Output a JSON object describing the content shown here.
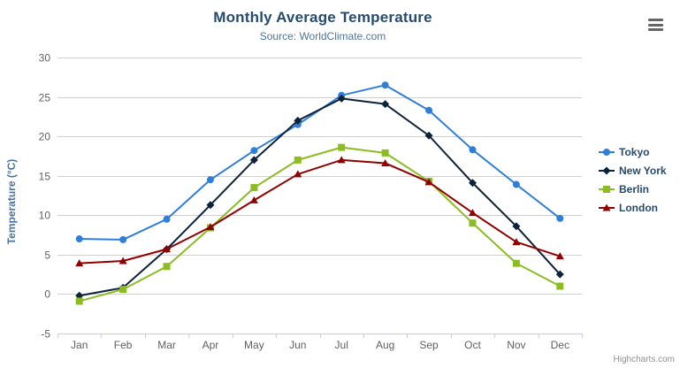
{
  "chart_data": {
    "type": "line",
    "title": "Monthly Average Temperature",
    "subtitle": "Source: WorldClimate.com",
    "xlabel": "",
    "ylabel": "Temperature (°C)",
    "ylim": [
      -5,
      30
    ],
    "ytick_step": 5,
    "grid": true,
    "legend_position": "right",
    "categories": [
      "Jan",
      "Feb",
      "Mar",
      "Apr",
      "May",
      "Jun",
      "Jul",
      "Aug",
      "Sep",
      "Oct",
      "Nov",
      "Dec"
    ],
    "series": [
      {
        "name": "Tokyo",
        "color": "#2f7ed8",
        "marker": "circle",
        "values": [
          7.0,
          6.9,
          9.5,
          14.5,
          18.2,
          21.5,
          25.2,
          26.5,
          23.3,
          18.3,
          13.9,
          9.6
        ]
      },
      {
        "name": "New York",
        "color": "#0d233a",
        "marker": "diamond",
        "values": [
          -0.2,
          0.8,
          5.7,
          11.3,
          17.0,
          22.0,
          24.8,
          24.1,
          20.1,
          14.1,
          8.6,
          2.5
        ]
      },
      {
        "name": "Berlin",
        "color": "#8bbc21",
        "marker": "square",
        "values": [
          -0.9,
          0.6,
          3.5,
          8.4,
          13.5,
          17.0,
          18.6,
          17.9,
          14.3,
          9.0,
          3.9,
          1.0
        ]
      },
      {
        "name": "London",
        "color": "#910000",
        "marker": "triangle",
        "values": [
          3.9,
          4.2,
          5.7,
          8.5,
          11.9,
          15.2,
          17.0,
          16.6,
          14.2,
          10.3,
          6.6,
          4.8
        ]
      }
    ]
  },
  "credits": "Highcharts.com",
  "menu_icon": "hamburger-icon",
  "colors": {
    "title_text": "#274b6d",
    "subtitle_text": "#4d759e",
    "axis_title_text": "#4572a7",
    "axis_label_text": "#606060",
    "gridline": "#d0d0d0",
    "axis_line": "#c0d0e0",
    "legend_text": "#274b6d",
    "credits_text": "#909090",
    "menu_icon_color": "#666666"
  }
}
